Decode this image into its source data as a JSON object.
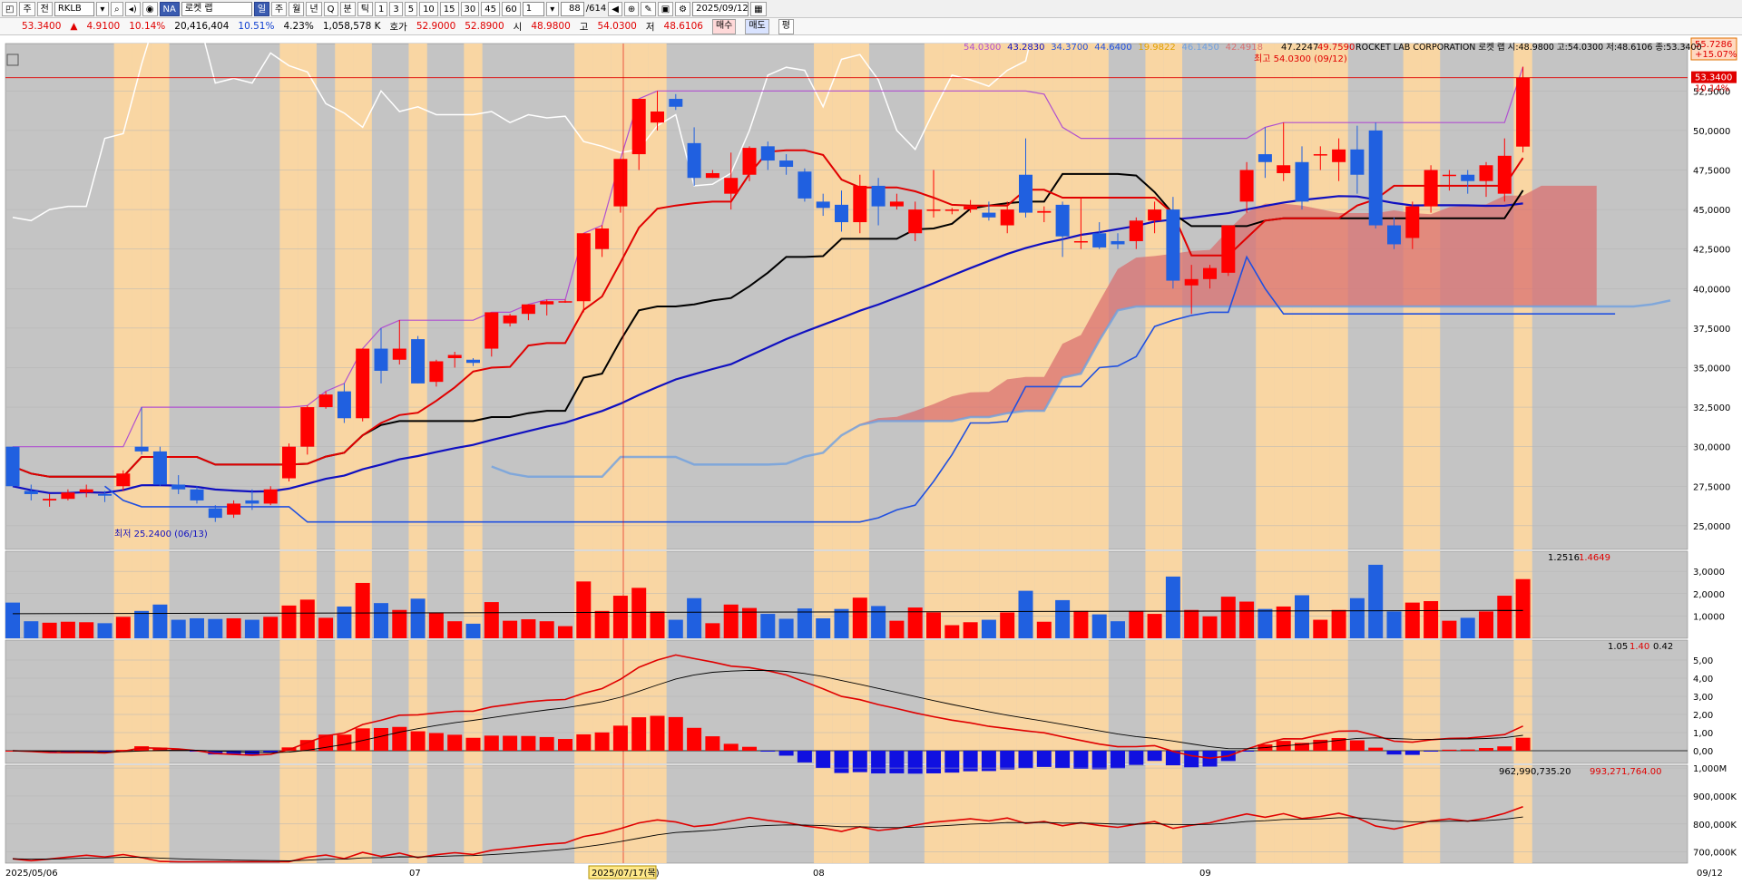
{
  "toolbar": {
    "period_day": "주",
    "period_day2": "전",
    "symbol": "RKLB",
    "exchange_badge": "NA",
    "company_short": "로켓 랩",
    "exchange_btn": "일",
    "p_day": "주",
    "p_month": "월",
    "p_year": "년",
    "p_quarter": "Q",
    "p_min": "분",
    "p_tick": "틱",
    "intervals": [
      "1",
      "3",
      "5",
      "10",
      "15",
      "30",
      "45",
      "60"
    ],
    "unit": "1",
    "count": "88",
    "total": "/614",
    "date": "2025/09/12"
  },
  "info": {
    "price": "53.3400",
    "change_arrow": "▲",
    "change": "4.9100",
    "change_pct": "10.14%",
    "volume": "20,416,404",
    "vol_pct": "10.51%",
    "turnover_pct": "4.23%",
    "amount": "1,058,578 K",
    "quote_label": "호가",
    "ask": "52.9000",
    "bid": "52.8900",
    "open_label": "시",
    "open": "48.9800",
    "high_label": "고",
    "high": "54.0300",
    "low_label": "저",
    "low": "48.6106",
    "buy_label": "매수",
    "sell_label": "매도",
    "eval_label": "평"
  },
  "legend": {
    "ichimoku_vals": [
      "54.0300",
      "43.2830",
      "34.3700",
      "44.6400",
      "19.9822",
      "46.1450",
      "42.4918"
    ],
    "stock_line": "ROCKET LAB CORPORATION 로켓 랩 시:48.9800 고:54.0300 저:48.6106 종:53.3400",
    "prefix_vals": [
      "47.2247",
      "49.7590"
    ],
    "high_note": "최고 54.0300 (09/12)",
    "low_note": "최저 25.2400 (06/13)",
    "price_badge": "53.3400",
    "price_badge_pct": "10.14%",
    "top_right_price": "55.7286",
    "top_right_pct": "+15.07%"
  },
  "volume_legend": {
    "a": "1.2516",
    "b": "1.4649"
  },
  "macd_legend": {
    "a": "1.05",
    "b": "1.40",
    "c": "0.42"
  },
  "obv_legend": {
    "a": "962,990,735.20",
    "b": "993,271,764.00"
  },
  "x_axis": {
    "start": "2025/05/06",
    "m07": "07",
    "cursor_date": "2025/07/17(목)",
    "m08": "08",
    "m09": "09",
    "end": "09/12"
  },
  "colors": {
    "up": "#ff0000",
    "down": "#2060e0",
    "cloud_up": "#d97070",
    "cloud_down": "#6fa0e0",
    "shade": "#ffd8a0",
    "bg": "#c4c4c4"
  },
  "chart_data": {
    "type": "candlestick",
    "price_axis": [
      "52,5000",
      "50,0000",
      "47,5000",
      "45,0000",
      "42,5000",
      "40,0000",
      "37,5000",
      "35,0000",
      "32,5000",
      "30,0000",
      "27,5000",
      "25,0000"
    ],
    "volume_axis": [
      "3,0000",
      "2,0000",
      "1,0000"
    ],
    "macd_axis": [
      "5,00",
      "4,00",
      "3,00",
      "2,00",
      "1,00",
      "0,00"
    ],
    "obv_axis": [
      "1,000M",
      "900,000K",
      "800,000K",
      "700,000K"
    ],
    "ylim": [
      23.5,
      55.5
    ],
    "candles": [
      [
        30.0,
        30.0,
        27.5,
        27.5
      ],
      [
        27.2,
        27.6,
        26.6,
        27.0
      ],
      [
        26.6,
        27.0,
        26.2,
        26.7
      ],
      [
        26.7,
        27.3,
        26.6,
        27.1
      ],
      [
        27.1,
        27.6,
        26.8,
        27.3
      ],
      [
        27.0,
        27.2,
        26.5,
        26.9
      ],
      [
        27.5,
        28.5,
        27.2,
        28.3
      ],
      [
        30.0,
        32.5,
        29.5,
        29.7
      ],
      [
        29.7,
        30.0,
        27.5,
        27.6
      ],
      [
        27.6,
        28.2,
        27.0,
        27.3
      ],
      [
        27.3,
        27.5,
        26.4,
        26.6
      ],
      [
        26.1,
        26.3,
        25.24,
        25.5
      ],
      [
        25.7,
        26.6,
        25.5,
        26.4
      ],
      [
        26.6,
        27.3,
        26.0,
        26.4
      ],
      [
        26.4,
        27.5,
        26.3,
        27.3
      ],
      [
        28.0,
        30.2,
        27.8,
        30.0
      ],
      [
        30.0,
        32.6,
        29.5,
        32.5
      ],
      [
        32.5,
        33.5,
        32.4,
        33.3
      ],
      [
        33.5,
        34.0,
        31.5,
        31.8
      ],
      [
        31.8,
        36.2,
        31.6,
        36.2
      ],
      [
        36.2,
        37.5,
        34.0,
        34.8
      ],
      [
        35.5,
        38.0,
        35.2,
        36.2
      ],
      [
        36.8,
        37.0,
        34.0,
        34.0
      ],
      [
        34.1,
        35.5,
        33.8,
        35.4
      ],
      [
        35.6,
        36.0,
        35.0,
        35.8
      ],
      [
        35.5,
        35.6,
        35.1,
        35.3
      ],
      [
        36.2,
        38.5,
        35.7,
        38.5
      ],
      [
        37.8,
        38.4,
        37.6,
        38.3
      ],
      [
        38.4,
        39.0,
        38.0,
        39.0
      ],
      [
        39.0,
        39.3,
        38.3,
        39.2
      ],
      [
        39.2,
        39.3,
        39.1,
        39.2
      ],
      [
        39.2,
        43.5,
        38.5,
        43.5
      ],
      [
        42.5,
        44.0,
        42.0,
        43.8
      ],
      [
        45.2,
        48.2,
        44.8,
        48.2
      ],
      [
        48.5,
        52.0,
        47.5,
        52.0
      ],
      [
        50.5,
        52.5,
        50.0,
        51.2
      ],
      [
        52.0,
        52.3,
        51.3,
        51.5
      ],
      [
        49.2,
        50.2,
        46.5,
        47.0
      ],
      [
        47.0,
        47.5,
        47.0,
        47.3
      ],
      [
        46.0,
        48.6,
        45.0,
        47.0
      ],
      [
        47.2,
        49.0,
        46.8,
        48.9
      ],
      [
        49.0,
        49.3,
        47.5,
        48.1
      ],
      [
        48.1,
        48.5,
        47.2,
        47.7
      ],
      [
        47.4,
        47.6,
        45.5,
        45.7
      ],
      [
        45.5,
        46.0,
        44.6,
        45.1
      ],
      [
        45.3,
        46.2,
        43.6,
        44.2
      ],
      [
        44.2,
        47.2,
        43.5,
        46.5
      ],
      [
        46.5,
        47.0,
        44.0,
        45.2
      ],
      [
        45.2,
        46.0,
        45.0,
        45.5
      ],
      [
        43.5,
        45.5,
        43.0,
        45.0
      ],
      [
        45.0,
        47.5,
        44.5,
        45.0
      ],
      [
        45.0,
        45.1,
        44.7,
        45.0
      ],
      [
        45.0,
        45.6,
        44.8,
        45.2
      ],
      [
        44.8,
        45.5,
        44.3,
        44.5
      ],
      [
        44.0,
        45.5,
        43.5,
        45.0
      ],
      [
        47.2,
        49.5,
        44.5,
        44.8
      ],
      [
        44.8,
        45.2,
        44.2,
        44.9
      ],
      [
        45.3,
        45.5,
        42.0,
        43.3
      ],
      [
        43.0,
        45.8,
        42.5,
        43.0
      ],
      [
        43.5,
        44.2,
        42.5,
        42.6
      ],
      [
        43.0,
        43.5,
        42.5,
        42.8
      ],
      [
        43.0,
        44.5,
        42.5,
        44.3
      ],
      [
        44.3,
        45.5,
        43.5,
        45.0
      ],
      [
        45.0,
        45.8,
        40.0,
        40.5
      ],
      [
        40.2,
        41.5,
        38.4,
        40.6
      ],
      [
        40.6,
        41.5,
        40.0,
        41.3
      ],
      [
        41.0,
        44.0,
        40.8,
        44.0
      ],
      [
        45.5,
        48.0,
        44.8,
        47.5
      ],
      [
        48.5,
        50.2,
        47.0,
        48.0
      ],
      [
        47.3,
        50.5,
        46.8,
        47.8
      ],
      [
        48.0,
        49.0,
        45.0,
        45.5
      ],
      [
        48.5,
        49.0,
        47.5,
        48.5
      ],
      [
        48.0,
        49.5,
        46.8,
        48.8
      ],
      [
        48.8,
        50.3,
        46.0,
        47.2
      ],
      [
        50.0,
        50.5,
        43.8,
        44.0
      ],
      [
        44.0,
        44.5,
        42.5,
        42.8
      ],
      [
        43.2,
        45.5,
        42.5,
        45.2
      ],
      [
        45.2,
        47.8,
        44.8,
        47.5
      ],
      [
        47.2,
        47.5,
        46.2,
        47.2
      ],
      [
        47.2,
        47.5,
        46.0,
        46.8
      ],
      [
        46.8,
        48.0,
        45.8,
        47.8
      ],
      [
        46.0,
        49.5,
        45.5,
        48.4
      ],
      [
        48.98,
        54.03,
        48.61,
        53.34
      ]
    ]
  }
}
